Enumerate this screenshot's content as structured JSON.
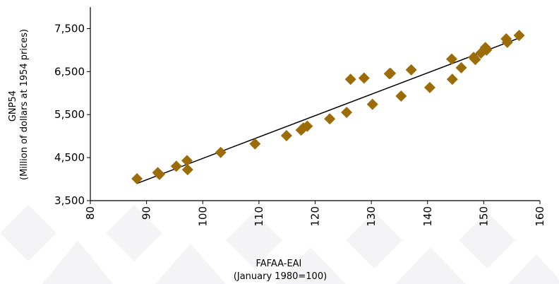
{
  "chart_data": {
    "type": "scatter",
    "title": "",
    "xlabel_lines": [
      "FAFAA-EAI",
      "(January 1980=100)"
    ],
    "ylabel_lines": [
      "GNP54",
      "(Million of dollars at 1954 prices)"
    ],
    "xlim": [
      80,
      160
    ],
    "ylim": [
      3500,
      8000
    ],
    "x_ticks": [
      80,
      90,
      100,
      110,
      120,
      130,
      140,
      150,
      160
    ],
    "y_ticks": [
      3500,
      4500,
      5500,
      6500,
      7500
    ],
    "x_tick_labels": [
      "80",
      "90",
      "100",
      "110",
      "120",
      "130",
      "140",
      "150",
      "160"
    ],
    "y_tick_labels": [
      "3,500",
      "4,500",
      "5,500",
      "6,500",
      "7,500"
    ],
    "grid": false,
    "marker_color": "#9C6C08",
    "trendline_color": "#000000",
    "points": [
      {
        "x": 88.3,
        "y": 4010
      },
      {
        "x": 92.0,
        "y": 4150
      },
      {
        "x": 92.3,
        "y": 4110
      },
      {
        "x": 95.3,
        "y": 4300
      },
      {
        "x": 97.2,
        "y": 4430
      },
      {
        "x": 97.3,
        "y": 4220
      },
      {
        "x": 103.2,
        "y": 4620
      },
      {
        "x": 109.3,
        "y": 4820
      },
      {
        "x": 114.9,
        "y": 5010
      },
      {
        "x": 117.5,
        "y": 5140
      },
      {
        "x": 117.9,
        "y": 5190
      },
      {
        "x": 118.6,
        "y": 5230
      },
      {
        "x": 122.6,
        "y": 5400
      },
      {
        "x": 125.6,
        "y": 5550
      },
      {
        "x": 126.3,
        "y": 6320
      },
      {
        "x": 128.7,
        "y": 6350
      },
      {
        "x": 130.2,
        "y": 5740
      },
      {
        "x": 133.2,
        "y": 6450
      },
      {
        "x": 133.4,
        "y": 6460
      },
      {
        "x": 135.3,
        "y": 5930
      },
      {
        "x": 137.1,
        "y": 6540
      },
      {
        "x": 140.4,
        "y": 6130
      },
      {
        "x": 144.3,
        "y": 6790
      },
      {
        "x": 144.4,
        "y": 6320
      },
      {
        "x": 146.0,
        "y": 6590
      },
      {
        "x": 148.2,
        "y": 6830
      },
      {
        "x": 148.5,
        "y": 6780
      },
      {
        "x": 149.5,
        "y": 6930
      },
      {
        "x": 150.3,
        "y": 7060
      },
      {
        "x": 150.5,
        "y": 7000
      },
      {
        "x": 154.0,
        "y": 7260
      },
      {
        "x": 154.2,
        "y": 7180
      },
      {
        "x": 156.3,
        "y": 7340
      }
    ],
    "trendline": {
      "x": [
        88.3,
        156.3
      ],
      "y": [
        3900,
        7280
      ]
    }
  }
}
